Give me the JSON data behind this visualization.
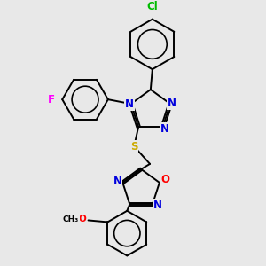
{
  "bg_color": "#e8e8e8",
  "bond_color": "#000000",
  "atom_colors": {
    "N": "#0000dd",
    "O": "#ff0000",
    "S": "#ccaa00",
    "F": "#ff00ff",
    "Cl": "#00bb00"
  },
  "lw": 1.4,
  "fs": 8.5,
  "xlim": [
    0.3,
    2.7
  ],
  "ylim": [
    0.1,
    3.1
  ]
}
